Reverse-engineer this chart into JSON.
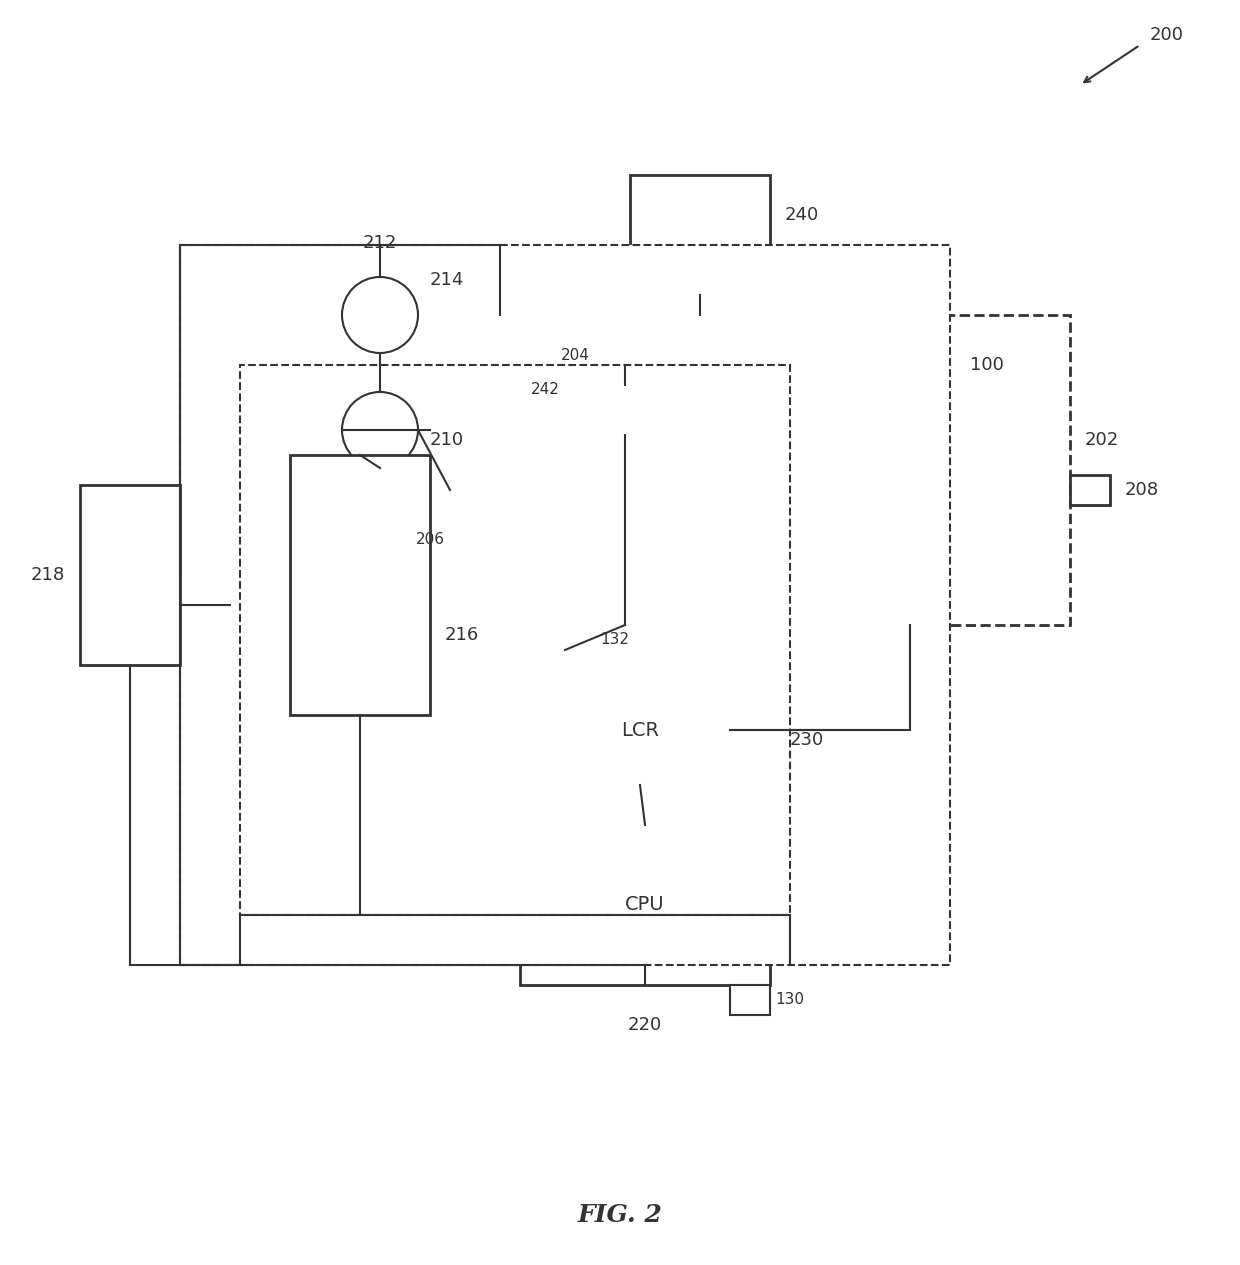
{
  "bg_color": "#ffffff",
  "line_color": "#333333",
  "fig_label": "FIG. 2",
  "ref_200": "200",
  "ref_100": "100",
  "ref_202": "202",
  "ref_204": "204",
  "ref_206": "206",
  "ref_208": "208",
  "ref_210": "210",
  "ref_212": "212",
  "ref_214": "214",
  "ref_216": "216",
  "ref_218": "218",
  "ref_220": "220",
  "ref_230": "230",
  "ref_240": "240",
  "ref_242": "242",
  "ref_132": "132",
  "ref_130": "130"
}
